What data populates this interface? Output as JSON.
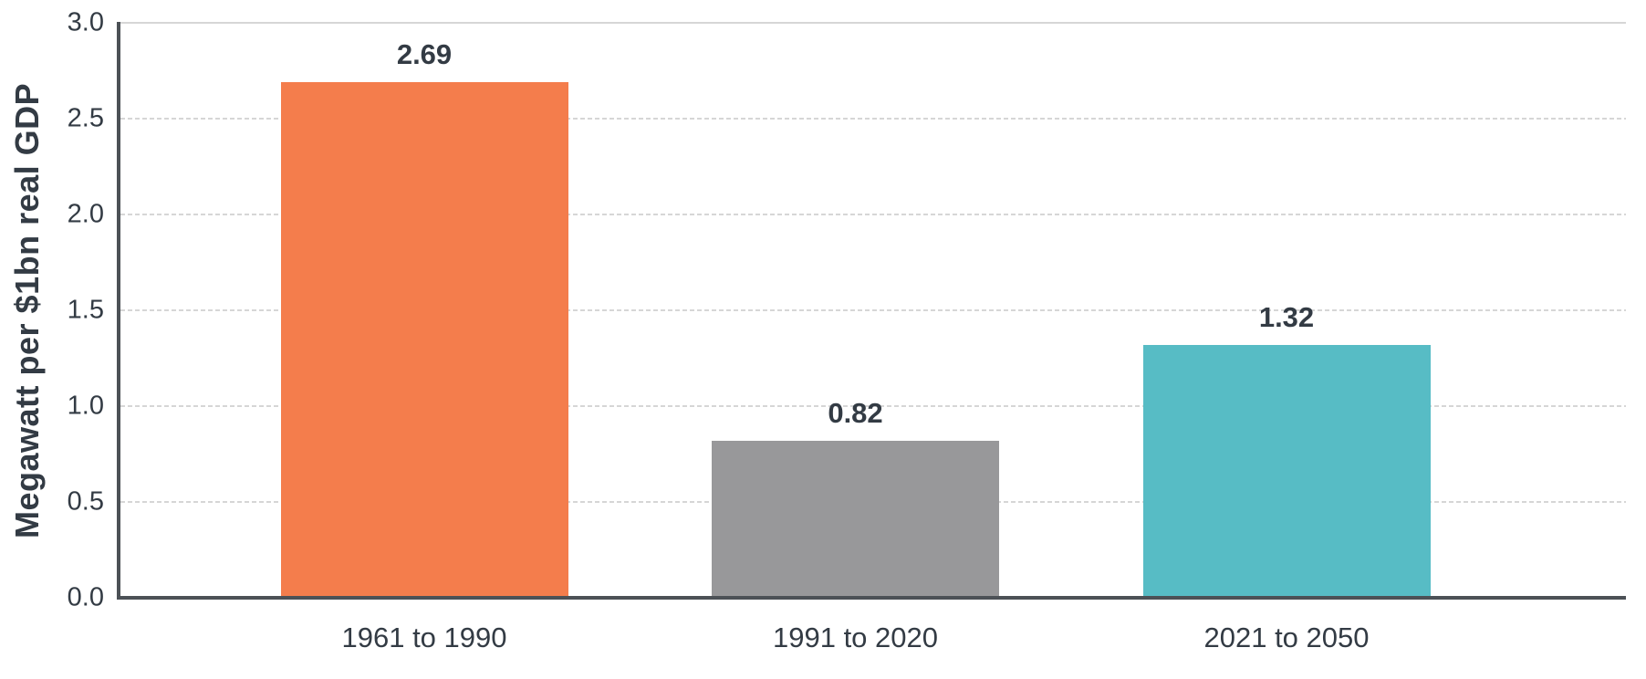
{
  "chart_data": {
    "type": "bar",
    "title": "",
    "xlabel": "",
    "ylabel": "Megawatt per $1bn real GDP",
    "categories": [
      "1961 to 1990",
      "1991 to 2020",
      "2021 to 2050"
    ],
    "values": [
      2.69,
      0.82,
      1.32
    ],
    "value_labels": [
      "2.69",
      "0.82",
      "1.32"
    ],
    "bar_colors": [
      "#F47D4C",
      "#98989A",
      "#57BCC5"
    ],
    "ylim": [
      0,
      3
    ],
    "ytick_step": 0.5,
    "ytick_labels": [
      "0.0",
      "0.5",
      "1.0",
      "1.5",
      "2.0",
      "2.5",
      "3.0"
    ],
    "grid": "horizontal",
    "legend_position": "none"
  },
  "colors": {
    "text": "#333B44",
    "axis": "#4C5156",
    "gridline": "#D6D6D6"
  }
}
